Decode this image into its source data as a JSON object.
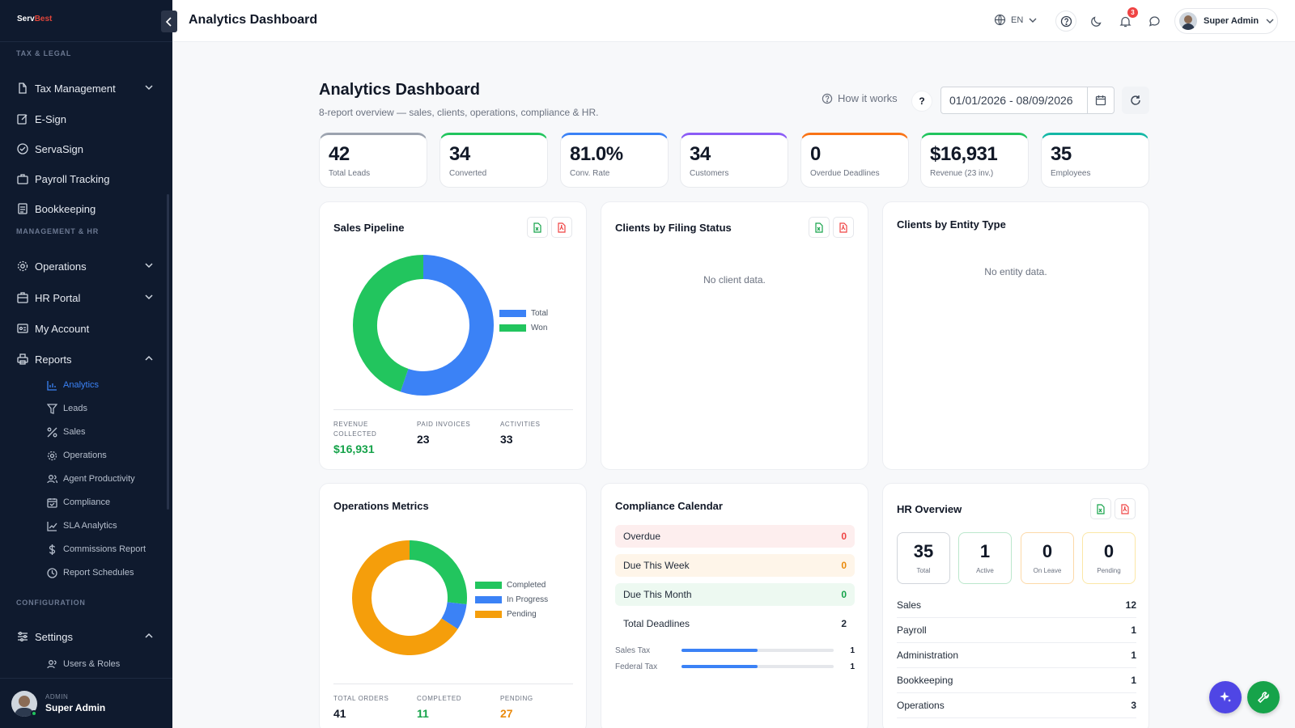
{
  "brand": {
    "name_a": "Serv",
    "name_b": "Best"
  },
  "colors": {
    "sidebar_bg": "#0f1a2e",
    "accent": "#3b82f6",
    "green": "#22c55e",
    "orange": "#f59e0b",
    "red": "#ef4444"
  },
  "sidebar": {
    "sections": {
      "tax": "TAX & LEGAL",
      "mgmt": "MANAGEMENT & HR",
      "config": "CONFIGURATION"
    },
    "items": [
      {
        "label": "Tax Management",
        "icon": "file-edit-icon",
        "expandable": "collapsed"
      },
      {
        "label": "E-Sign",
        "icon": "pen-square-icon"
      },
      {
        "label": "ServaSign",
        "icon": "check-circle-icon"
      },
      {
        "label": "Payroll Tracking",
        "icon": "briefcase-icon"
      },
      {
        "label": "Bookkeeping",
        "icon": "ledger-icon"
      },
      {
        "label": "Operations",
        "icon": "gear-icon",
        "expandable": "collapsed"
      },
      {
        "label": "HR Portal",
        "icon": "building-icon",
        "expandable": "collapsed"
      },
      {
        "label": "My Account",
        "icon": "id-card-icon"
      },
      {
        "label": "Reports",
        "icon": "printer-icon",
        "expandable": "expanded"
      },
      {
        "label": "Settings",
        "icon": "sliders-icon",
        "expandable": "expanded"
      }
    ],
    "reports_sub": [
      {
        "label": "Analytics",
        "icon": "bar-chart-icon",
        "active": true
      },
      {
        "label": "Leads",
        "icon": "funnel-icon"
      },
      {
        "label": "Sales",
        "icon": "percent-icon"
      },
      {
        "label": "Operations",
        "icon": "cog-icon"
      },
      {
        "label": "Agent Productivity",
        "icon": "users-icon"
      },
      {
        "label": "Compliance",
        "icon": "calendar-check-icon"
      },
      {
        "label": "SLA Analytics",
        "icon": "line-chart-icon"
      },
      {
        "label": "Commissions Report",
        "icon": "dollar-icon"
      },
      {
        "label": "Report Schedules",
        "icon": "clock-icon"
      }
    ],
    "settings_sub": [
      {
        "label": "Users & Roles",
        "icon": "users-icon"
      }
    ],
    "footer": {
      "role": "ADMIN",
      "name": "Super Admin"
    }
  },
  "topbar": {
    "title": "Analytics Dashboard",
    "lang": "EN",
    "notifications": "3",
    "user": "Super Admin"
  },
  "header": {
    "title": "Analytics Dashboard",
    "subtitle": "8-report overview — sales, clients, operations, compliance & HR.",
    "how_it_works": "How it works",
    "help": "?",
    "date_range": "01/01/2026 - 08/09/2026"
  },
  "kpis": [
    {
      "value": "42",
      "label": "Total Leads",
      "color": "#9ca3af"
    },
    {
      "value": "34",
      "label": "Converted",
      "color": "#22c55e"
    },
    {
      "value": "81.0%",
      "label": "Conv. Rate",
      "color": "#3b82f6"
    },
    {
      "value": "34",
      "label": "Customers",
      "color": "#8b5cf6"
    },
    {
      "value": "0",
      "label": "Overdue Deadlines",
      "color": "#f97316"
    },
    {
      "value": "$16,931",
      "label": "Revenue (23 inv.)",
      "color": "#22c55e"
    },
    {
      "value": "35",
      "label": "Employees",
      "color": "#14b8a6"
    }
  ],
  "sales_pipeline": {
    "title": "Sales Pipeline",
    "stats": [
      {
        "label": "REVENUE COLLECTED",
        "value": "$16,931",
        "color": "#16a34a"
      },
      {
        "label": "PAID INVOICES",
        "value": "23",
        "color": "#111827"
      },
      {
        "label": "ACTIVITIES",
        "value": "33",
        "color": "#111827"
      }
    ]
  },
  "filing_status": {
    "title": "Clients by Filing Status",
    "empty": "No client data."
  },
  "entity_type": {
    "title": "Clients by Entity Type",
    "empty": "No entity data."
  },
  "operations": {
    "title": "Operations Metrics",
    "stats": [
      {
        "label": "TOTAL ORDERS",
        "value": "41",
        "color": "#111827"
      },
      {
        "label": "COMPLETED",
        "value": "11",
        "color": "#16a34a"
      },
      {
        "label": "PENDING",
        "value": "27",
        "color": "#ea8a0c"
      }
    ]
  },
  "compliance": {
    "title": "Compliance Calendar",
    "rows": [
      {
        "label": "Overdue",
        "value": "0",
        "bg": "#fdeeee",
        "color": "#ef4444"
      },
      {
        "label": "Due This Week",
        "value": "0",
        "bg": "#fef5e9",
        "color": "#ea8a0c"
      },
      {
        "label": "Due This Month",
        "value": "0",
        "bg": "#edf9f1",
        "color": "#16a34a"
      },
      {
        "label": "Total Deadlines",
        "value": "2",
        "bg": "#ffffff",
        "color": "#111827"
      }
    ],
    "bars": [
      {
        "label": "Sales Tax",
        "count": "1",
        "fraction": 0.5
      },
      {
        "label": "Federal Tax",
        "count": "1",
        "fraction": 0.5
      }
    ]
  },
  "hr": {
    "title": "HR Overview",
    "tiles": [
      {
        "value": "35",
        "label": "Total",
        "border": "#d1d5db"
      },
      {
        "value": "1",
        "label": "Active",
        "border": "#bbe7cc"
      },
      {
        "value": "0",
        "label": "On Leave",
        "border": "#fcd9a8"
      },
      {
        "value": "0",
        "label": "Pending",
        "border": "#fbe7a6"
      }
    ],
    "departments": [
      {
        "name": "Sales",
        "count": "12"
      },
      {
        "name": "Payroll",
        "count": "1"
      },
      {
        "name": "Administration",
        "count": "1"
      },
      {
        "name": "Bookkeeping",
        "count": "1"
      },
      {
        "name": "Operations",
        "count": "3"
      }
    ]
  },
  "chart_data": [
    {
      "type": "pie",
      "title": "Sales Pipeline",
      "donut": true,
      "series": [
        {
          "name": "Total",
          "value": 42,
          "color": "#3b82f6"
        },
        {
          "name": "Won",
          "value": 34,
          "color": "#22c55e"
        }
      ],
      "legend": "right"
    },
    {
      "type": "pie",
      "title": "Operations Metrics",
      "donut": true,
      "series": [
        {
          "name": "Completed",
          "value": 11,
          "color": "#22c55e"
        },
        {
          "name": "In Progress",
          "value": 3,
          "color": "#3b82f6"
        },
        {
          "name": "Pending",
          "value": 27,
          "color": "#f59e0b"
        }
      ],
      "legend": "right"
    }
  ]
}
